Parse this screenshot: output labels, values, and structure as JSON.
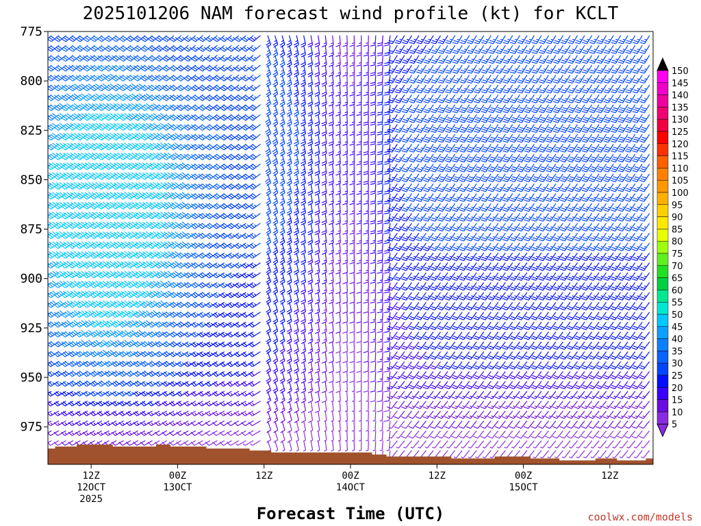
{
  "chart_data": {
    "type": "wind-profile",
    "title": "2025101206 NAM forecast wind profile (kt) for KCLT",
    "xlabel": "Forecast Time (UTC)",
    "ylabel": "",
    "y_axis": {
      "units": "hPa",
      "range": [
        775,
        994
      ],
      "ticks": [
        775,
        800,
        825,
        850,
        875,
        900,
        925,
        950,
        975
      ]
    },
    "x_axis": {
      "range_hours": [
        0,
        84
      ],
      "ticks": [
        {
          "hour": 6,
          "line1": "12Z",
          "line2": "12OCT",
          "line3": "2025"
        },
        {
          "hour": 18,
          "line1": "00Z",
          "line2": "13OCT",
          "line3": ""
        },
        {
          "hour": 30,
          "line1": "12Z",
          "line2": "",
          "line3": ""
        },
        {
          "hour": 42,
          "line1": "00Z",
          "line2": "14OCT",
          "line3": ""
        },
        {
          "hour": 54,
          "line1": "12Z",
          "line2": "",
          "line3": ""
        },
        {
          "hour": 66,
          "line1": "00Z",
          "line2": "15OCT",
          "line3": ""
        },
        {
          "hour": 78,
          "line1": "12Z",
          "line2": "",
          "line3": ""
        }
      ]
    },
    "colorbar": {
      "labels": [
        5,
        10,
        15,
        20,
        25,
        30,
        35,
        40,
        45,
        50,
        55,
        60,
        65,
        70,
        75,
        80,
        85,
        90,
        95,
        100,
        105,
        110,
        115,
        120,
        125,
        130,
        135,
        140,
        145,
        150
      ],
      "colors": [
        "#8a2be2",
        "#6a0de0",
        "#3a00ff",
        "#0010ff",
        "#0044ff",
        "#0a62ff",
        "#0a80ff",
        "#0aa0ff",
        "#00c8ff",
        "#00e8d0",
        "#00e890",
        "#00d040",
        "#20e020",
        "#60f020",
        "#a0ff10",
        "#e8ff00",
        "#ffe800",
        "#ffd000",
        "#ffb000",
        "#ff9800",
        "#ff8000",
        "#ff6000",
        "#ff3000",
        "#ff0000",
        "#f00040",
        "#f00070",
        "#f000a0",
        "#f000c8",
        "#ff00f0",
        "#000000"
      ]
    },
    "wind_model": {
      "hours_step": 1,
      "levels": [
        777,
        782,
        787,
        792,
        797,
        802,
        807,
        812,
        817,
        822,
        827,
        832,
        837,
        842,
        847,
        852,
        857,
        862,
        867,
        872,
        877,
        882,
        887,
        892,
        897,
        902,
        907,
        912,
        917,
        922,
        927,
        932,
        937,
        942,
        947,
        952,
        957,
        962,
        967,
        972,
        977,
        982,
        987
      ],
      "base_direction_deg": 225,
      "note_speed_peak_kt": 45
    },
    "terrain": {
      "color": "#a0522d",
      "surface_pressure_hpa": [
        [
          0,
          986
        ],
        [
          1,
          985
        ],
        [
          2,
          985
        ],
        [
          3,
          985
        ],
        [
          4,
          984
        ],
        [
          5,
          984
        ],
        [
          6,
          984
        ],
        [
          7,
          984
        ],
        [
          8,
          984
        ],
        [
          9,
          985
        ],
        [
          10,
          985
        ],
        [
          11,
          985
        ],
        [
          12,
          985
        ],
        [
          13,
          985
        ],
        [
          14,
          985
        ],
        [
          15,
          984
        ],
        [
          16,
          984
        ],
        [
          17,
          985
        ],
        [
          18,
          985
        ],
        [
          19,
          985
        ],
        [
          20,
          985
        ],
        [
          21,
          985
        ],
        [
          22,
          986
        ],
        [
          23,
          986
        ],
        [
          24,
          986
        ],
        [
          25,
          986
        ],
        [
          26,
          986
        ],
        [
          27,
          986
        ],
        [
          28,
          987
        ],
        [
          29,
          987
        ],
        [
          30,
          987
        ],
        [
          31,
          988
        ],
        [
          32,
          988
        ],
        [
          33,
          988
        ],
        [
          34,
          988
        ],
        [
          35,
          988
        ],
        [
          36,
          988
        ],
        [
          37,
          988
        ],
        [
          38,
          988
        ],
        [
          39,
          988
        ],
        [
          40,
          988
        ],
        [
          41,
          988
        ],
        [
          42,
          988
        ],
        [
          43,
          988
        ],
        [
          44,
          988
        ],
        [
          45,
          989
        ],
        [
          46,
          989
        ],
        [
          47,
          990
        ],
        [
          48,
          990
        ],
        [
          49,
          990
        ],
        [
          50,
          990
        ],
        [
          51,
          990
        ],
        [
          52,
          990
        ],
        [
          53,
          990
        ],
        [
          54,
          990
        ],
        [
          55,
          990
        ],
        [
          56,
          991
        ],
        [
          57,
          991
        ],
        [
          58,
          991
        ],
        [
          59,
          991
        ],
        [
          60,
          991
        ],
        [
          61,
          991
        ],
        [
          62,
          990
        ],
        [
          63,
          990
        ],
        [
          64,
          990
        ],
        [
          65,
          990
        ],
        [
          66,
          990
        ],
        [
          67,
          991
        ],
        [
          68,
          991
        ],
        [
          69,
          991
        ],
        [
          70,
          991
        ],
        [
          71,
          992
        ],
        [
          72,
          992
        ],
        [
          73,
          992
        ],
        [
          74,
          992
        ],
        [
          75,
          992
        ],
        [
          76,
          991
        ],
        [
          77,
          991
        ],
        [
          78,
          991
        ],
        [
          79,
          992
        ],
        [
          80,
          992
        ],
        [
          81,
          992
        ],
        [
          82,
          992
        ],
        [
          83,
          991
        ],
        [
          84,
          990
        ]
      ]
    },
    "credit": "coolwx.com/models"
  }
}
